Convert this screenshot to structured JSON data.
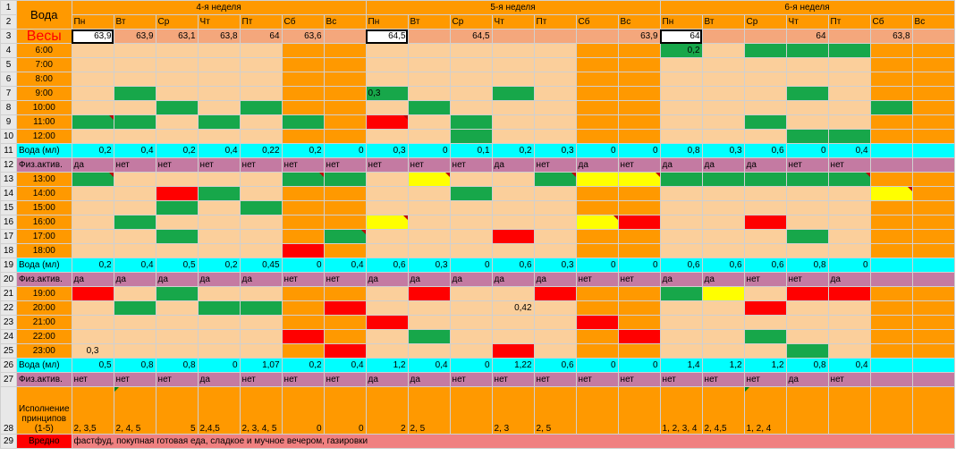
{
  "spreadsheet": {
    "row_numbers": [
      "1",
      "2",
      "3",
      "4",
      "5",
      "6",
      "7",
      "8",
      "9",
      "10",
      "11",
      "12",
      "13",
      "14",
      "15",
      "16",
      "17",
      "18",
      "19",
      "20",
      "21",
      "22",
      "23",
      "24",
      "25",
      "26",
      "27",
      "28",
      "29"
    ],
    "title_cell": "Вода",
    "weights_label": "Весы",
    "weeks": [
      "4-я неделя",
      "5-я неделя",
      "6-я неделя"
    ],
    "days": [
      "Пн",
      "Вт",
      "Ср",
      "Чт",
      "Пт",
      "Сб",
      "Вс",
      "Пн",
      "Вт",
      "Ср",
      "Чт",
      "Пт",
      "Сб",
      "Вс",
      "Пн",
      "Вт",
      "Ср",
      "Чт",
      "Пт",
      "Сб",
      "Вс"
    ],
    "weights": [
      "63,9",
      "63,9",
      "63,1",
      "63,8",
      "64",
      "63,6",
      "",
      "64,5",
      "",
      "64,5",
      "",
      "",
      "",
      "63,9",
      "64",
      "",
      "",
      "64",
      "",
      "63,8",
      ""
    ],
    "time_labels": [
      "6:00",
      "7:00",
      "8:00",
      "9:00",
      "10:00",
      "11:00",
      "12:00",
      "13:00",
      "14:00",
      "15:00",
      "16:00",
      "17:00",
      "18:00",
      "19:00",
      "20:00",
      "21:00",
      "22:00",
      "23:00"
    ],
    "water_label": "Вода (мл)",
    "activity_label": "Физ.актив.",
    "water_1": [
      "0,2",
      "0,4",
      "0,2",
      "0,4",
      "0,22",
      "0,2",
      "0",
      "0,3",
      "0",
      "0,1",
      "0,2",
      "0,3",
      "0",
      "0",
      "0,8",
      "0,3",
      "0,6",
      "0",
      "0,4",
      "",
      ""
    ],
    "activity_1": [
      "да",
      "нет",
      "нет",
      "нет",
      "нет",
      "нет",
      "нет",
      "нет",
      "нет",
      "нет",
      "да",
      "нет",
      "да",
      "нет",
      "да",
      "да",
      "да",
      "нет",
      "нет",
      "",
      ""
    ],
    "water_2": [
      "0,2",
      "0,4",
      "0,5",
      "0,2",
      "0,45",
      "0",
      "0,4",
      "0,6",
      "0,3",
      "0",
      "0,6",
      "0,3",
      "0",
      "0",
      "0,6",
      "0,6",
      "0,6",
      "0,8",
      "0",
      "",
      ""
    ],
    "activity_2": [
      "да",
      "да",
      "да",
      "да",
      "да",
      "нет",
      "нет",
      "да",
      "да",
      "да",
      "да",
      "да",
      "нет",
      "нет",
      "да",
      "да",
      "нет",
      "нет",
      "да",
      "",
      ""
    ],
    "water_3": [
      "0,5",
      "0,8",
      "0,8",
      "0",
      "1,07",
      "0,2",
      "0,4",
      "1,2",
      "0,4",
      "0",
      "1,22",
      "0,6",
      "0",
      "0",
      "1,4",
      "1,2",
      "1,2",
      "0,8",
      "0,4",
      "",
      ""
    ],
    "activity_3": [
      "нет",
      "нет",
      "нет",
      "да",
      "нет",
      "нет",
      "нет",
      "да",
      "да",
      "нет",
      "нет",
      "нет",
      "нет",
      "нет",
      "нет",
      "нет",
      "нет",
      "да",
      "нет",
      "",
      ""
    ],
    "cell_values": {
      "r7_c8": "0,3",
      "r22_c11": "0,42",
      "r25_c1": "0,3",
      "r4_c15": "0,2"
    },
    "principles_label": "Исполнение принципов (1-5)",
    "principles": [
      "2, 3,5",
      "2, 4, 5",
      "5",
      "2,4,5",
      "2, 3, 4, 5",
      "0",
      "0",
      "2",
      "2, 5",
      "",
      "2, 3",
      "2, 5",
      "",
      "",
      "1, 2, 3, 4",
      "2, 4,5",
      "1, 2, 4",
      "",
      "",
      "",
      ""
    ],
    "harmful_label": "Вредно",
    "harmful_text": "фастфуд, покупная готовая еда, сладкое и мучное вечером, газировки",
    "colors": {
      "orange": "#ff9900",
      "peach": "#fbcf9b",
      "green": "#17a74a",
      "red": "#ff0000",
      "yellow": "#ffff00",
      "cyan": "#00ffff",
      "mauve": "#c47aa2"
    }
  }
}
